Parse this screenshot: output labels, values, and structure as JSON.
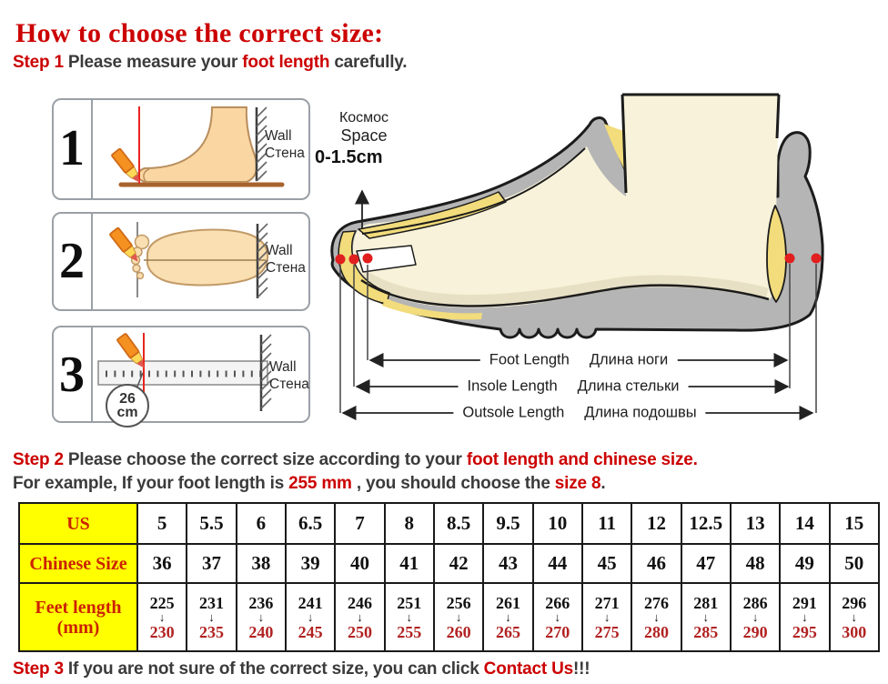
{
  "title": "How to choose the correct size:",
  "steps": {
    "step1": [
      {
        "t": "Step 1 ",
        "c": "red"
      },
      {
        "t": "Please measure your ",
        "c": "dark"
      },
      {
        "t": "foot length ",
        "c": "red"
      },
      {
        "t": "carefully.",
        "c": "dark"
      }
    ],
    "step2_line1": [
      {
        "t": "Step 2 ",
        "c": "red"
      },
      {
        "t": "Please choose the correct size according to your ",
        "c": "dark"
      },
      {
        "t": "foot length and chinese size.",
        "c": "red"
      }
    ],
    "step2_line2": [
      {
        "t": "For example, If your foot length is ",
        "c": "dark"
      },
      {
        "t": "255 mm ",
        "c": "red"
      },
      {
        "t": ", you should choose the ",
        "c": "dark"
      },
      {
        "t": "size 8",
        "c": "red"
      },
      {
        "t": ".",
        "c": "dark"
      }
    ],
    "step3": [
      {
        "t": "Step 3 ",
        "c": "red"
      },
      {
        "t": "If you are not sure of the correct size, you can click ",
        "c": "dark"
      },
      {
        "t": "Contact Us",
        "c": "red",
        "i": true
      },
      {
        "t": "!!!",
        "c": "dark"
      }
    ]
  },
  "diagram": {
    "box_numbers": [
      "1",
      "2",
      "3"
    ],
    "wall_label": {
      "en": "Wall",
      "ru": "Стена"
    },
    "space_label": {
      "ru": "Космос",
      "en": "Space",
      "value": "0-1.5cm"
    },
    "ruler_circle": [
      "26",
      "cm"
    ],
    "measurements": [
      {
        "en": "Foot Length",
        "ru": "Длина ноги"
      },
      {
        "en": "Insole Length",
        "ru": "Длина стельки"
      },
      {
        "en": "Outsole Length",
        "ru": "Длина подошвы"
      }
    ]
  },
  "size_table": {
    "arrow_glyph": "↓",
    "rows": [
      {
        "type": "plain",
        "header_lines": [
          "US"
        ],
        "values": [
          "5",
          "5.5",
          "6",
          "6.5",
          "7",
          "8",
          "8.5",
          "9.5",
          "10",
          "11",
          "12",
          "12.5",
          "13",
          "14",
          "15"
        ]
      },
      {
        "type": "plain",
        "header_lines": [
          "Chinese Size"
        ],
        "values": [
          "36",
          "37",
          "38",
          "39",
          "40",
          "41",
          "42",
          "43",
          "44",
          "45",
          "46",
          "47",
          "48",
          "49",
          "50"
        ]
      },
      {
        "type": "range",
        "header_lines": [
          "Feet length",
          "(mm)"
        ],
        "values": [
          {
            "from": "225",
            "to": "230"
          },
          {
            "from": "231",
            "to": "235"
          },
          {
            "from": "236",
            "to": "240"
          },
          {
            "from": "241",
            "to": "245"
          },
          {
            "from": "246",
            "to": "250"
          },
          {
            "from": "251",
            "to": "255"
          },
          {
            "from": "256",
            "to": "260"
          },
          {
            "from": "261",
            "to": "265"
          },
          {
            "from": "266",
            "to": "270"
          },
          {
            "from": "271",
            "to": "275"
          },
          {
            "from": "276",
            "to": "280"
          },
          {
            "from": "281",
            "to": "285"
          },
          {
            "from": "286",
            "to": "290"
          },
          {
            "from": "291",
            "to": "295"
          },
          {
            "from": "296",
            "to": "300"
          }
        ]
      }
    ]
  },
  "colors": {
    "red": "#cc0000",
    "dark": "#3b3b3b",
    "table_red": "#b22222",
    "header_red": "#cc2200",
    "yellow": "#ffff00"
  }
}
